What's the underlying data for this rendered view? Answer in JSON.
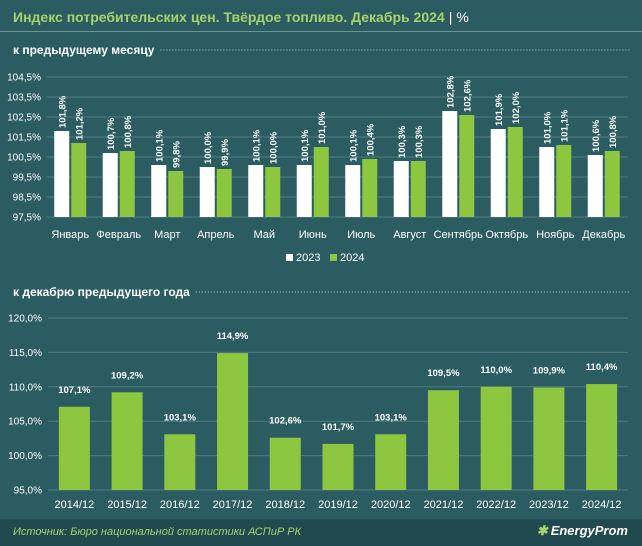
{
  "header": {
    "title": "Индекс потребительских цен. Твёрдое топливо. Декабрь 2024",
    "separator": "|",
    "unit": "%"
  },
  "colors": {
    "y2023": "#ffffff",
    "y2024": "#8dc63f",
    "background": "#2b5c62",
    "grid": "#4f7b80"
  },
  "chart_data": [
    {
      "type": "bar",
      "title": "к предыдущему месяцу",
      "categories": [
        "Январь",
        "Февраль",
        "Март",
        "Апрель",
        "Май",
        "Июнь",
        "Июль",
        "Август",
        "Сентябрь",
        "Октябрь",
        "Ноябрь",
        "Декабрь"
      ],
      "series": [
        {
          "name": "2023",
          "values": [
            101.8,
            100.7,
            100.1,
            100.0,
            100.1,
            100.1,
            100.1,
            100.3,
            102.8,
            101.9,
            101.0,
            100.6
          ],
          "labels": [
            "101,8%",
            "100,7%",
            "100,1%",
            "100,0%",
            "100,1%",
            "100,1%",
            "100,1%",
            "100,3%",
            "102,8%",
            "101,9%",
            "101,0%",
            "100,6%"
          ]
        },
        {
          "name": "2024",
          "values": [
            101.2,
            100.8,
            99.8,
            99.9,
            100.0,
            101.0,
            100.4,
            100.3,
            102.6,
            102.0,
            101.1,
            100.8
          ],
          "labels": [
            "101,2%",
            "100,8%",
            "99,8%",
            "99,9%",
            "100,0%",
            "101,0%",
            "100,4%",
            "100,3%",
            "102,6%",
            "102,0%",
            "101,1%",
            "100,8%"
          ]
        }
      ],
      "ylim": [
        97.5,
        104.5
      ],
      "yticks": [
        97.5,
        98.5,
        99.5,
        100.5,
        101.5,
        102.5,
        103.5,
        104.5
      ],
      "ytick_labels": [
        "97,5%",
        "98,5%",
        "99,5%",
        "100,5%",
        "101,5%",
        "102,5%",
        "103,5%",
        "104,5%"
      ],
      "grid": true,
      "legend": "bottom-center"
    },
    {
      "type": "bar",
      "title": "к декабрю предыдущего года",
      "categories": [
        "2014/12",
        "2015/12",
        "2016/12",
        "2017/12",
        "2018/12",
        "2019/12",
        "2020/12",
        "2021/12",
        "2022/12",
        "2023/12",
        "2024/12"
      ],
      "series": [
        {
          "values": [
            107.1,
            109.2,
            103.1,
            114.9,
            102.6,
            101.7,
            103.1,
            109.5,
            110.0,
            109.9,
            110.4
          ],
          "labels": [
            "107,1%",
            "109,2%",
            "103,1%",
            "114,9%",
            "102,6%",
            "101,7%",
            "103,1%",
            "109,5%",
            "110,0%",
            "109,9%",
            "110,4%"
          ]
        }
      ],
      "ylim": [
        95.0,
        120.0
      ],
      "yticks": [
        95,
        100,
        105,
        110,
        115,
        120
      ],
      "ytick_labels": [
        "95,0%",
        "100,0%",
        "105,0%",
        "110,0%",
        "115,0%",
        "120,0%"
      ],
      "grid": true
    }
  ],
  "footer": {
    "source": "Источник: Бюро национальной статистики АСПиР РК",
    "logo": "EnergyProm"
  }
}
